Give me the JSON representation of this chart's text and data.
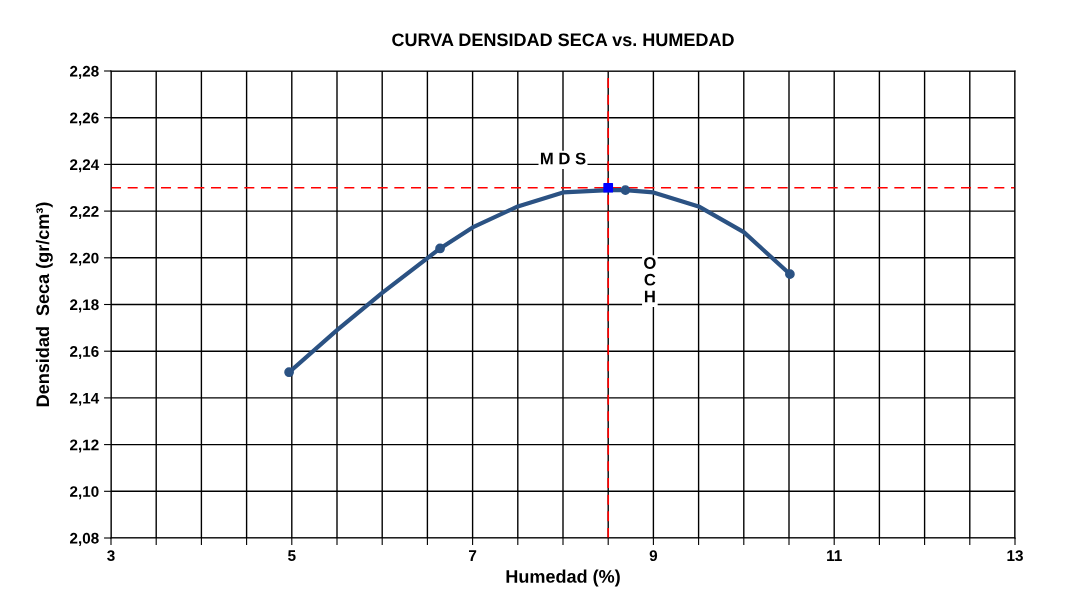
{
  "chart_data": {
    "type": "scatter",
    "title": "CURVA DENSIDAD SECA vs. HUMEDAD",
    "xlabel": "Humedad (%)",
    "ylabel": "Densidad  Seca (gr/cm³)",
    "series": [
      {
        "type": "line",
        "color": "#2b5283",
        "marker": "none",
        "x": [
          4.97,
          5.5,
          6,
          6.64,
          7,
          7.5,
          8,
          8.5,
          8.69,
          9,
          9.5,
          10,
          10.51
        ],
        "values": [
          2.151,
          2.169,
          2.185,
          2.204,
          2.213,
          2.222,
          2.228,
          2.229,
          2.229,
          2.228,
          2.222,
          2.211,
          2.193
        ]
      },
      {
        "color": "#2b5283",
        "marker": "circle",
        "x": [
          4.97,
          6.64,
          8.69,
          10.51
        ],
        "values": [
          2.151,
          2.204,
          2.229,
          2.193
        ]
      },
      {
        "color": "#0000ff",
        "marker": "square",
        "x": [
          8.5
        ],
        "values": [
          2.23
        ]
      }
    ],
    "ref_lines": [
      {
        "axis": "x",
        "value": 8.5,
        "color": "#ff0000",
        "line_style": "dashed",
        "label": "O\nC\nH"
      },
      {
        "axis": "y",
        "value": 2.23,
        "color": "#ff0000",
        "line_style": "dashed",
        "label": "M D S"
      }
    ],
    "xlim": [
      3,
      13
    ],
    "ylim": [
      2.08,
      2.28
    ],
    "xticks": [
      3,
      {
        "value": 3.5,
        "label": null
      },
      {
        "value": 4,
        "label": null
      },
      {
        "value": 4.5,
        "label": null
      },
      5,
      {
        "value": 5.5,
        "label": null
      },
      {
        "value": 6,
        "label": null
      },
      {
        "value": 6.5,
        "label": null
      },
      7,
      {
        "value": 7.5,
        "label": null
      },
      {
        "value": 8,
        "label": null
      },
      {
        "value": 8.5,
        "label": null
      },
      9,
      {
        "value": 9.5,
        "label": null
      },
      {
        "value": 10,
        "label": null
      },
      {
        "value": 10.5,
        "label": null
      },
      11,
      {
        "value": 11.5,
        "label": null
      },
      {
        "value": 12,
        "label": null
      },
      {
        "value": 12.5,
        "label": null
      },
      13
    ],
    "yticks": [
      {
        "value": 2.08,
        "label": "2,08"
      },
      {
        "value": 2.1,
        "label": "2,10"
      },
      {
        "value": 2.12,
        "label": "2,12"
      },
      {
        "value": 2.14,
        "label": "2,14"
      },
      {
        "value": 2.16,
        "label": "2,16"
      },
      {
        "value": 2.18,
        "label": "2,18"
      },
      {
        "value": 2.2,
        "label": "2,20"
      },
      {
        "value": 2.22,
        "label": "2,22"
      },
      {
        "value": 2.24,
        "label": "2,24"
      },
      {
        "value": 2.26,
        "label": "2,26"
      },
      {
        "value": 2.28,
        "label": "2,28"
      }
    ],
    "grid": true,
    "legend": false
  }
}
